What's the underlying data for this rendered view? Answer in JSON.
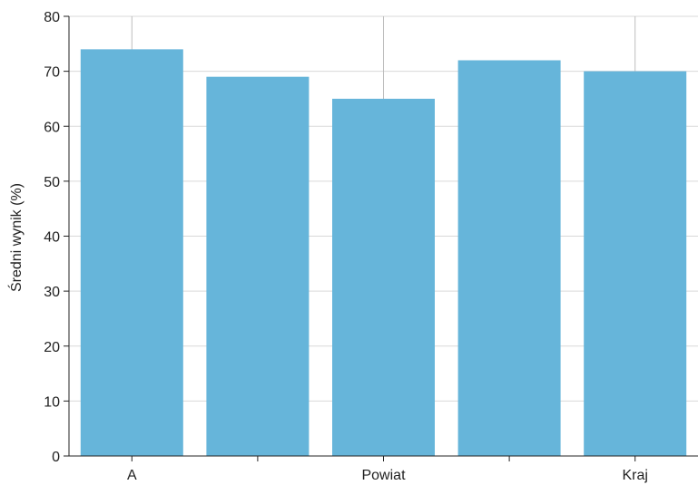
{
  "chart_data": {
    "type": "bar",
    "title": "",
    "xlabel": "",
    "ylabel": "Średni wynik (%)",
    "categories": [
      "A",
      "",
      "Powiat",
      "",
      "Kraj"
    ],
    "values": [
      74,
      69,
      65,
      72,
      70
    ],
    "ylim": [
      0,
      80
    ],
    "y_ticks": [
      0,
      10,
      20,
      30,
      40,
      50,
      60,
      70,
      80
    ],
    "grid": "horizontal",
    "legend": "none",
    "bar_color": "#66b5da",
    "grid_color": "#d9d9d9",
    "axis_color": "#222222"
  }
}
